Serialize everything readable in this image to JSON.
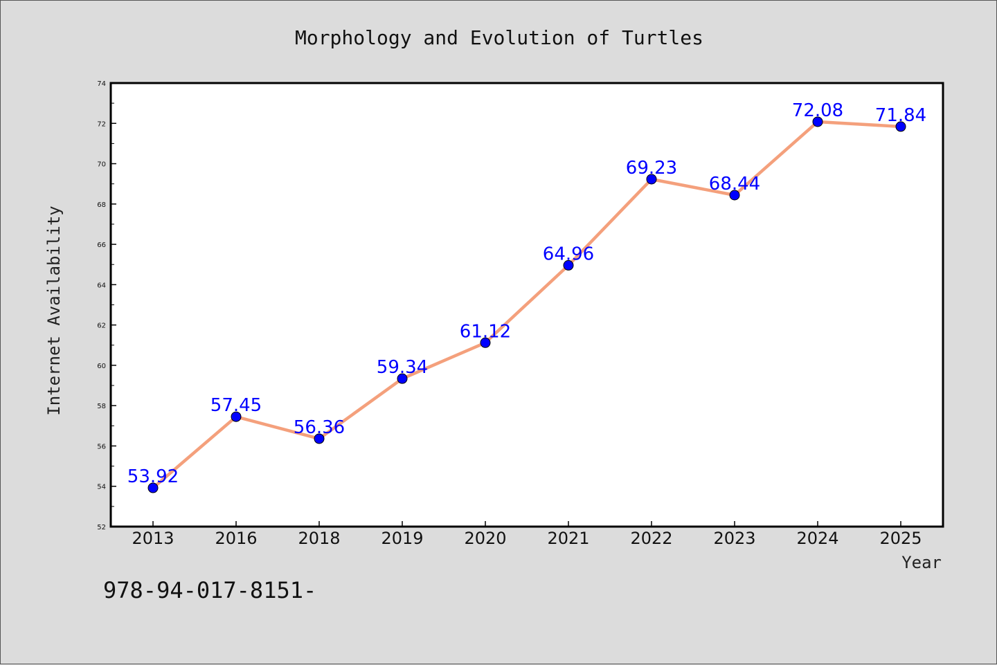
{
  "chart_data": {
    "type": "line",
    "title": "Morphology and Evolution of Turtles",
    "xlabel": "Year",
    "ylabel": "Internet Availability",
    "categories": [
      "2013",
      "2016",
      "2018",
      "2019",
      "2020",
      "2021",
      "2022",
      "2023",
      "2024",
      "2025"
    ],
    "series": [
      {
        "values": [
          53.92,
          57.45,
          56.36,
          59.34,
          61.12,
          64.96,
          69.23,
          68.44,
          72.08,
          71.84
        ],
        "labels": [
          "53.92",
          "57.45",
          "56.36",
          "59.34",
          "61.12",
          "64.96",
          "69.23",
          "68.44",
          "72.08",
          "71.84"
        ],
        "line_color": "#f4a07c",
        "marker_color": "#0000ff"
      }
    ],
    "ylim": [
      52,
      74
    ],
    "yticks": [
      "52",
      "54",
      "56",
      "58",
      "60",
      "62",
      "64",
      "66",
      "68",
      "70",
      "72",
      "74"
    ],
    "grid": false,
    "label_color": "#0000ff"
  },
  "footnote": "978-94-017-8151-"
}
